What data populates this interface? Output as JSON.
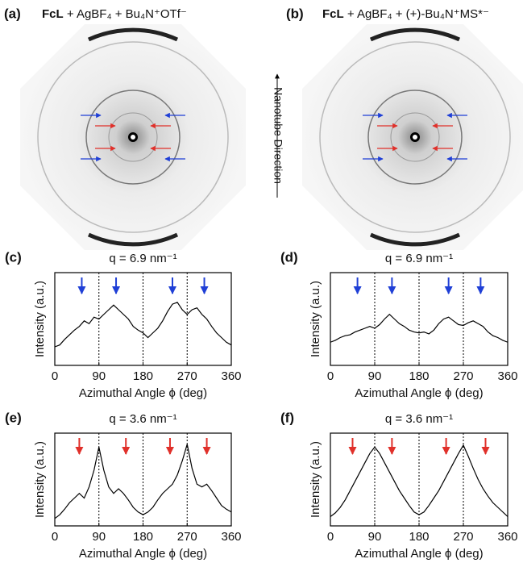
{
  "images": [
    {
      "label": "(a)",
      "title_bold": "FcL",
      "title_rest": " + AgBF₄ + Bu₄N⁺OTf⁻"
    },
    {
      "label": "(b)",
      "title_bold": "FcL",
      "title_rest": " + AgBF₄ + (+)-Bu₄N⁺MS*⁻"
    }
  ],
  "annotation": "Nanotube Direction",
  "chart_data": [
    {
      "type": "line",
      "label": "(c)",
      "title": "q = 6.9 nm⁻¹",
      "x_label": "Azimuthal Angle ϕ (deg)",
      "y_label": "Intensity (a.u.)",
      "x": [
        0,
        10,
        20,
        30,
        40,
        50,
        60,
        70,
        80,
        90,
        100,
        110,
        120,
        130,
        140,
        150,
        160,
        170,
        180,
        190,
        200,
        210,
        220,
        230,
        240,
        250,
        260,
        270,
        280,
        290,
        300,
        310,
        320,
        330,
        340,
        350,
        360
      ],
      "series": [
        {
          "color": "#000000",
          "values": [
            0.2,
            0.22,
            0.28,
            0.33,
            0.38,
            0.42,
            0.48,
            0.45,
            0.52,
            0.5,
            0.55,
            0.6,
            0.65,
            0.6,
            0.55,
            0.5,
            0.42,
            0.38,
            0.35,
            0.3,
            0.35,
            0.4,
            0.48,
            0.58,
            0.66,
            0.68,
            0.6,
            0.55,
            0.6,
            0.62,
            0.55,
            0.5,
            0.42,
            0.35,
            0.3,
            0.25,
            0.22
          ]
        }
      ],
      "xlim": [
        0,
        360
      ],
      "xticks": [
        0,
        90,
        180,
        270,
        360
      ],
      "ylim": [
        0,
        1
      ],
      "vlines": [
        90,
        180,
        270
      ],
      "arrows": {
        "color": "#1f3fd6",
        "x": [
          55,
          125,
          240,
          305
        ]
      }
    },
    {
      "type": "line",
      "label": "(d)",
      "title": "q = 6.9 nm⁻¹",
      "x_label": "Azimuthal Angle ϕ (deg)",
      "y_label": "Intensity (a.u.)",
      "x": [
        0,
        10,
        20,
        30,
        40,
        50,
        60,
        70,
        80,
        90,
        100,
        110,
        120,
        130,
        140,
        150,
        160,
        170,
        180,
        190,
        200,
        210,
        220,
        230,
        240,
        250,
        260,
        270,
        280,
        290,
        300,
        310,
        320,
        330,
        340,
        350,
        360
      ],
      "series": [
        {
          "color": "#000000",
          "values": [
            0.25,
            0.27,
            0.3,
            0.32,
            0.33,
            0.36,
            0.38,
            0.4,
            0.42,
            0.4,
            0.44,
            0.5,
            0.55,
            0.5,
            0.45,
            0.42,
            0.38,
            0.36,
            0.35,
            0.36,
            0.34,
            0.38,
            0.45,
            0.5,
            0.52,
            0.48,
            0.44,
            0.43,
            0.46,
            0.48,
            0.45,
            0.42,
            0.36,
            0.32,
            0.3,
            0.27,
            0.25
          ]
        }
      ],
      "xlim": [
        0,
        360
      ],
      "xticks": [
        0,
        90,
        180,
        270,
        360
      ],
      "ylim": [
        0,
        1
      ],
      "vlines": [
        90,
        180,
        270
      ],
      "arrows": {
        "color": "#1f3fd6",
        "x": [
          55,
          125,
          240,
          305
        ]
      }
    },
    {
      "type": "line",
      "label": "(e)",
      "title": "q = 3.6 nm⁻¹",
      "x_label": "Azimuthal Angle ϕ (deg)",
      "y_label": "Intensity (a.u.)",
      "x": [
        0,
        10,
        20,
        30,
        40,
        50,
        60,
        70,
        80,
        90,
        100,
        110,
        120,
        130,
        140,
        150,
        160,
        170,
        180,
        190,
        200,
        210,
        220,
        230,
        240,
        250,
        260,
        270,
        280,
        290,
        300,
        310,
        320,
        330,
        340,
        350,
        360
      ],
      "series": [
        {
          "color": "#000000",
          "values": [
            0.08,
            0.12,
            0.18,
            0.25,
            0.3,
            0.35,
            0.3,
            0.42,
            0.6,
            0.85,
            0.6,
            0.42,
            0.35,
            0.4,
            0.35,
            0.28,
            0.2,
            0.15,
            0.12,
            0.15,
            0.2,
            0.28,
            0.35,
            0.4,
            0.45,
            0.55,
            0.7,
            0.88,
            0.62,
            0.45,
            0.42,
            0.45,
            0.38,
            0.3,
            0.22,
            0.18,
            0.15
          ]
        }
      ],
      "xlim": [
        0,
        360
      ],
      "xticks": [
        0,
        90,
        180,
        270,
        360
      ],
      "ylim": [
        0,
        1
      ],
      "vlines": [
        90,
        180,
        270
      ],
      "arrows": {
        "color": "#e0302a",
        "x": [
          50,
          145,
          235,
          310
        ]
      }
    },
    {
      "type": "line",
      "label": "(f)",
      "title": "q = 3.6 nm⁻¹",
      "x_label": "Azimuthal Angle ϕ (deg)",
      "y_label": "Intensity (a.u.)",
      "x": [
        0,
        10,
        20,
        30,
        40,
        50,
        60,
        70,
        80,
        90,
        100,
        110,
        120,
        130,
        140,
        150,
        160,
        170,
        180,
        190,
        200,
        210,
        220,
        230,
        240,
        250,
        260,
        270,
        280,
        290,
        300,
        310,
        320,
        330,
        340,
        350,
        360
      ],
      "series": [
        {
          "color": "#000000",
          "values": [
            0.1,
            0.14,
            0.2,
            0.28,
            0.38,
            0.48,
            0.58,
            0.68,
            0.78,
            0.85,
            0.78,
            0.68,
            0.58,
            0.48,
            0.38,
            0.3,
            0.22,
            0.15,
            0.12,
            0.15,
            0.22,
            0.3,
            0.38,
            0.48,
            0.58,
            0.68,
            0.78,
            0.87,
            0.75,
            0.62,
            0.5,
            0.4,
            0.32,
            0.25,
            0.2,
            0.15,
            0.1
          ]
        }
      ],
      "xlim": [
        0,
        360
      ],
      "xticks": [
        0,
        90,
        180,
        270,
        360
      ],
      "ylim": [
        0,
        1
      ],
      "vlines": [
        90,
        180,
        270
      ],
      "arrows": {
        "color": "#e0302a",
        "x": [
          45,
          125,
          235,
          315
        ]
      }
    }
  ]
}
